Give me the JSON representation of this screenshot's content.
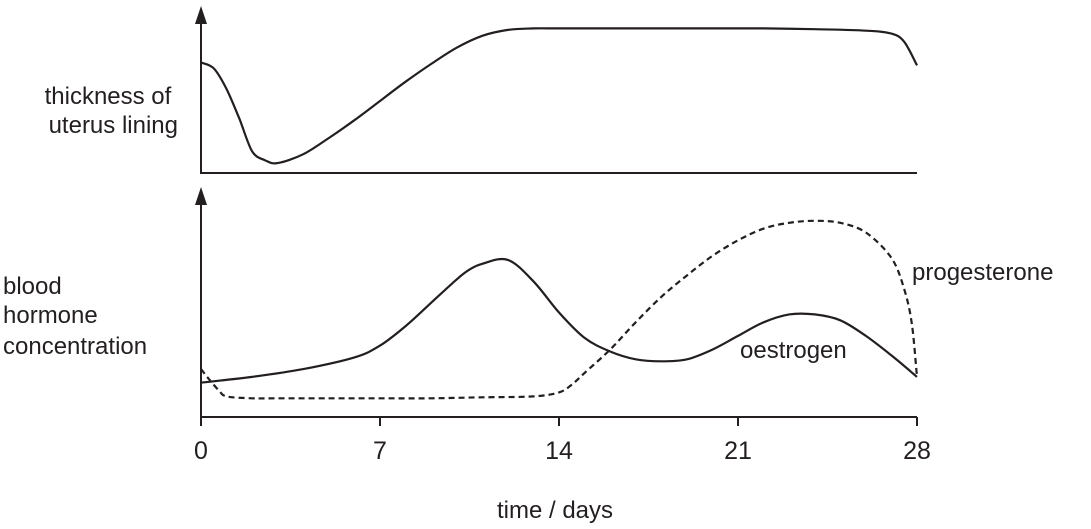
{
  "chart_data": [
    {
      "type": "line",
      "ylabel_lines": [
        "thickness of",
        "uterus lining"
      ],
      "xlim": [
        0,
        28
      ],
      "ylim": [
        0,
        100
      ],
      "series": [
        {
          "color": "#231f20",
          "dash": "solid",
          "x": [
            0,
            0.5,
            1,
            1.5,
            2,
            2.5,
            3,
            4,
            5,
            6,
            7,
            8,
            9,
            10,
            11,
            12,
            13,
            14,
            16,
            18,
            20,
            22,
            24,
            26,
            27,
            27.5,
            28
          ],
          "y": [
            74,
            70,
            56,
            36,
            14,
            8,
            6,
            12,
            23,
            35,
            48,
            61,
            73,
            84,
            92,
            96,
            97,
            97,
            97,
            97,
            97,
            97,
            96.5,
            95.5,
            93.5,
            88,
            72
          ]
        }
      ]
    },
    {
      "type": "line",
      "ylabel_lines": [
        "blood",
        "hormone",
        "concentration"
      ],
      "xlabel": "time / days",
      "xlim": [
        0,
        28
      ],
      "ylim": [
        0,
        100
      ],
      "xticks": [
        0,
        7,
        14,
        21,
        28
      ],
      "xtick_labels": [
        "0",
        "7",
        "14",
        "21",
        "28"
      ],
      "series": [
        {
          "name": "oestrogen",
          "color": "#231f20",
          "dash": "solid",
          "x": [
            0,
            2,
            4,
            6,
            7,
            8,
            9,
            10,
            10.5,
            11,
            12,
            13,
            14,
            15,
            16,
            17,
            18,
            19,
            20,
            21,
            22,
            23,
            24,
            25,
            26,
            27,
            28
          ],
          "y": [
            14,
            17,
            21,
            27,
            33,
            43,
            55,
            67,
            72,
            75,
            77,
            66,
            50,
            37,
            30,
            26,
            25,
            26,
            31,
            38,
            45,
            49,
            49,
            46,
            38,
            28,
            17
          ]
        },
        {
          "name": "progesterone",
          "color": "#231f20",
          "dash": "dashed",
          "x": [
            0,
            0.3,
            0.7,
            1,
            2,
            3,
            5,
            7,
            9,
            11,
            13,
            14,
            14.5,
            15,
            16,
            17,
            18,
            19,
            20,
            21,
            22,
            23,
            24,
            25,
            26,
            27,
            27.5,
            27.8,
            28
          ],
          "y": [
            21,
            16,
            10,
            7,
            6,
            6,
            6,
            6,
            6,
            6.5,
            7,
            9,
            13,
            19,
            31,
            45,
            58,
            69,
            79,
            87,
            93,
            96,
            97,
            96,
            91,
            78,
            62,
            44,
            17
          ]
        }
      ]
    }
  ]
}
